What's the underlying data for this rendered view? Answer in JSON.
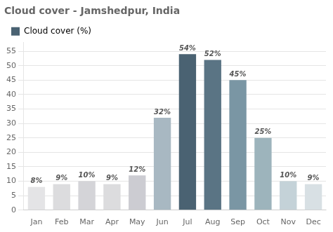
{
  "chart_data": {
    "type": "bar",
    "title": "Cloud cover - Jamshedpur, India",
    "categories": [
      "Jan",
      "Feb",
      "Mar",
      "Apr",
      "May",
      "Jun",
      "Jul",
      "Aug",
      "Sep",
      "Oct",
      "Nov",
      "Dec"
    ],
    "series": [
      {
        "name": "Cloud cover (%)",
        "color": "#4a6272",
        "colors": [
          "#e4e4e6",
          "#dcdcde",
          "#d4d4d8",
          "#dcdcde",
          "#ccccd2",
          "#a8b8c2",
          "#4a6272",
          "#5a7484",
          "#7a96a4",
          "#9db4bc",
          "#c4d2d8",
          "#d8e0e4"
        ],
        "values": [
          8,
          9,
          10,
          9,
          12,
          32,
          54,
          52,
          45,
          25,
          10,
          9
        ],
        "value_labels": [
          "8%",
          "9%",
          "10%",
          "9%",
          "12%",
          "32%",
          "54%",
          "52%",
          "45%",
          "25%",
          "10%",
          "9%"
        ]
      }
    ],
    "ylim": [
      0,
      58
    ],
    "yticks": [
      0,
      5,
      10,
      15,
      20,
      25,
      30,
      35,
      40,
      45,
      50,
      55
    ],
    "grid": true,
    "legend": "upper left",
    "data_labels": true
  }
}
